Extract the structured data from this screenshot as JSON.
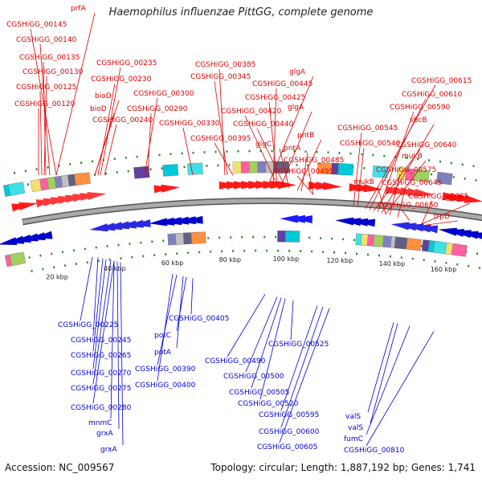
{
  "title": "Haemophilus influenzae PittGG, complete genome",
  "accession": "Accession: NC_009567",
  "summary": "Topology: circular; Length: 1,887,192 bp; Genes: 1,741",
  "colors": {
    "forward_label": "#e00000",
    "reverse_label": "#0000dd",
    "forward_arrow": "#ff1a1a",
    "reverse_arrow": "#1a1aff",
    "backbone": "#8a8a8a"
  },
  "ticks": [
    {
      "label": "20 kbp",
      "kbp": 20
    },
    {
      "label": "40 kbp",
      "kbp": 40
    },
    {
      "label": "60 kbp",
      "kbp": 60
    },
    {
      "label": "80 kbp",
      "kbp": 80
    },
    {
      "label": "100 kbp",
      "kbp": 100
    },
    {
      "label": "120 kbp",
      "kbp": 120
    },
    {
      "label": "140 kbp",
      "kbp": 140
    },
    {
      "label": "160 kbp",
      "kbp": 160
    }
  ],
  "forward_labels": [
    "prfA",
    "CGSHiGG_00145",
    "CGSHiGG_00140",
    "CGSHiGG_00135",
    "CGSHiGG_00130",
    "CGSHiGG_00125",
    "CGSHiGG_00120",
    "CGSHiGG_00235",
    "CGSHiGG_00230",
    "bioD",
    "bioD",
    "CGSHiGG_00240",
    "CGSHiGG_00300",
    "CGSHiGG_00290",
    "CGSHiGG_00385",
    "CGSHiGG_00345",
    "CGSHiGG_00330",
    "CGSHiGG_00395",
    "glgA",
    "CGSHiGG_00445",
    "CGSHiGG_00425",
    "glgA",
    "CGSHiGG_00420",
    "CGSHiGG_00440",
    "glgC",
    "pntB",
    "pntA",
    "CGSHiGG_00485",
    "CGSHiGG_00495",
    "CGSHiGG_00615",
    "CGSHiGG_00610",
    "CGSHiGG_00590",
    "sbcB",
    "CGSHiGG_00545",
    "CGSHiGG_00540",
    "CGSHiGG_00640",
    "mukB",
    "CGSHiGG_00575",
    "mukB",
    "CGSHiGG_00645",
    "sbcB",
    "CGSHiGG_00685",
    "CGSHiGG_00650",
    "trpD"
  ],
  "reverse_labels": [
    "CGSHiGG_00225",
    "CGSHiGG_00245",
    "CGSHiGG_00265",
    "CGSHiGG_00270",
    "CGSHiGG_00275",
    "CGSHiGG_00280",
    "mnmC",
    "grxA",
    "grxA",
    "CGSHiGG_00405",
    "potC",
    "potA",
    "CGSHiGG_00390",
    "CGSHiGG_00400",
    "CGSHiGG_00490",
    "CGSHiGG_00525",
    "CGSHiGG_00500",
    "CGSHiGG_00505",
    "CGSHiGG_00520",
    "CGSHiGG_00595",
    "CGSHiGG_00600",
    "CGSHiGG_00605",
    "valS",
    "valS",
    "fumC",
    "CGSHiGG_00810"
  ]
}
